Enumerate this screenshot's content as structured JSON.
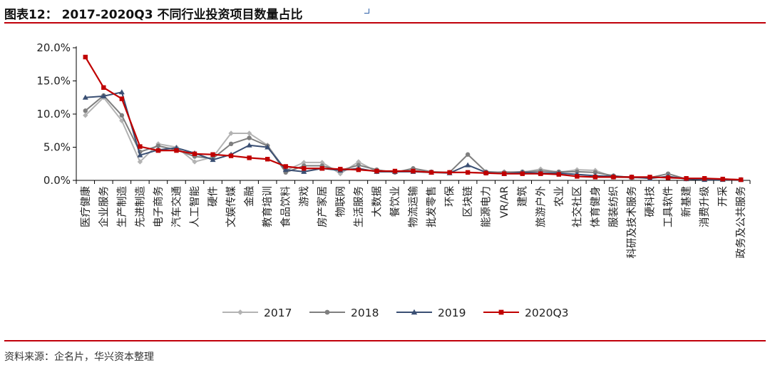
{
  "header": {
    "title": "图表12： 2017-2020Q3 不同行业投资项目数量占比",
    "source": "资料来源：企名片，华兴资本整理"
  },
  "chart_data": {
    "type": "line",
    "title": "2017-2020Q3 不同行业投资项目数量占比",
    "xlabel": "",
    "ylabel": "",
    "ylim": [
      0,
      20
    ],
    "yticks": [
      0,
      5,
      10,
      15,
      20
    ],
    "ytick_labels": [
      "0.0%",
      "5.0%",
      "10.0%",
      "15.0%",
      "20.0%"
    ],
    "unit": "%",
    "grid": false,
    "legend_position": "bottom",
    "categories": [
      "医疗健康",
      "企业服务",
      "生产制造",
      "先进制造",
      "电子商务",
      "汽车交通",
      "人工智能",
      "硬件",
      "文娱传媒",
      "金融",
      "教育培训",
      "食品饮料",
      "游戏",
      "房产家居",
      "物联网",
      "生活服务",
      "大数据",
      "餐饮业",
      "物流运输",
      "批发零售",
      "环保",
      "区块链",
      "能源电力",
      "VR/AR",
      "建筑",
      "旅游户外",
      "农业",
      "社交社区",
      "体育健身",
      "服装纺织",
      "科研及技术服务",
      "硬科技",
      "工具软件",
      "新基建",
      "消费升级",
      "开采",
      "政务及公共服务"
    ],
    "series": [
      {
        "name": "2017",
        "color": "#b3b3b3",
        "marker": "diamond",
        "values": [
          9.8,
          12.5,
          9.0,
          2.8,
          5.5,
          5.0,
          2.8,
          3.5,
          7.1,
          7.1,
          5.3,
          1.5,
          2.7,
          2.7,
          1.0,
          2.8,
          1.3,
          1.3,
          1.5,
          1.2,
          1.2,
          1.2,
          1.1,
          1.3,
          1.2,
          1.7,
          1.2,
          1.6,
          1.5,
          0.5,
          0.4,
          null,
          null,
          null,
          null,
          null,
          null
        ]
      },
      {
        "name": "2018",
        "color": "#7f7f7f",
        "marker": "circle",
        "values": [
          10.5,
          12.8,
          9.8,
          4.3,
          5.2,
          4.6,
          3.6,
          3.3,
          5.5,
          6.4,
          5.2,
          1.2,
          2.2,
          2.2,
          1.5,
          2.3,
          1.6,
          1.2,
          1.8,
          1.3,
          1.2,
          3.9,
          1.3,
          1.2,
          1.3,
          1.4,
          1.3,
          1.3,
          1.2,
          0.7,
          0.4,
          0.4,
          1.0,
          0.2,
          0.2,
          0.2,
          0.1
        ]
      },
      {
        "name": "2019",
        "color": "#3a4f73",
        "marker": "triangle",
        "values": [
          12.5,
          12.7,
          13.3,
          3.8,
          4.6,
          4.9,
          4.1,
          3.1,
          3.9,
          5.3,
          5.0,
          1.6,
          1.3,
          1.8,
          1.5,
          1.8,
          1.3,
          1.3,
          1.3,
          1.2,
          1.1,
          2.3,
          1.2,
          1.0,
          1.2,
          1.1,
          1.1,
          0.9,
          0.7,
          0.6,
          0.5,
          0.3,
          0.6,
          0.2,
          0.1,
          0.1,
          0.1
        ]
      },
      {
        "name": "2020Q3",
        "color": "#c00000",
        "marker": "square",
        "values": [
          18.6,
          14.0,
          12.3,
          5.1,
          4.5,
          4.5,
          4.0,
          3.9,
          3.7,
          3.4,
          3.2,
          2.1,
          1.8,
          1.8,
          1.7,
          1.6,
          1.4,
          1.4,
          1.4,
          1.2,
          1.2,
          1.2,
          1.1,
          1.0,
          1.0,
          1.0,
          0.9,
          0.6,
          0.5,
          0.5,
          0.5,
          0.5,
          0.4,
          0.3,
          0.3,
          0.2,
          0.1
        ]
      }
    ]
  }
}
